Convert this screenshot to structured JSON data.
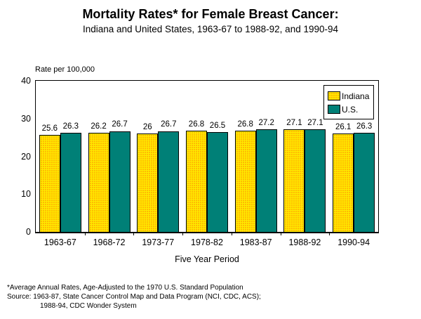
{
  "title": "Mortality Rates* for Female Breast Cancer:",
  "subtitle": "Indiana and United States, 1963-67 to 1988-92, and 1990-94",
  "axis_note": "Rate per 100,000",
  "x_axis_title": "Five Year Period",
  "legend": {
    "indiana_label": "Indiana",
    "us_label": "U.S."
  },
  "colors": {
    "indiana_pattern_bg": "#FFEB00",
    "indiana_pattern_dot": "#FF2A00",
    "us_bar": "#008077",
    "frame": "#000000",
    "background": "#FFFFFF"
  },
  "y_ticks": [
    "40",
    "30",
    "20",
    "10",
    "0"
  ],
  "chart_data": {
    "type": "bar",
    "categories": [
      "1963-67",
      "1968-72",
      "1973-77",
      "1978-82",
      "1983-87",
      "1988-92",
      "1990-94"
    ],
    "series": [
      {
        "name": "Indiana",
        "values": [
          25.6,
          26.2,
          26,
          26.8,
          26.8,
          27.1,
          26.1
        ]
      },
      {
        "name": "U.S.",
        "values": [
          26.3,
          26.7,
          26.7,
          26.5,
          27.2,
          27.1,
          26.3
        ]
      }
    ],
    "title": "Mortality Rates* for Female Breast Cancer: Indiana and United States, 1963-67 to 1988-92, and 1990-94",
    "xlabel": "Five Year Period",
    "ylabel": "Rate per 100,000",
    "ylim": [
      0,
      40
    ],
    "grid": false,
    "legend_position": "top-right",
    "value_labels_shown": true
  },
  "footnotes": {
    "line1": "*Average Annual Rates, Age-Adjusted to the 1970 U.S. Standard Population",
    "line2": "Source:  1963-87, State Cancer Control Map and Data Program (NCI, CDC, ACS);",
    "line3": "1988-94, CDC Wonder System"
  }
}
